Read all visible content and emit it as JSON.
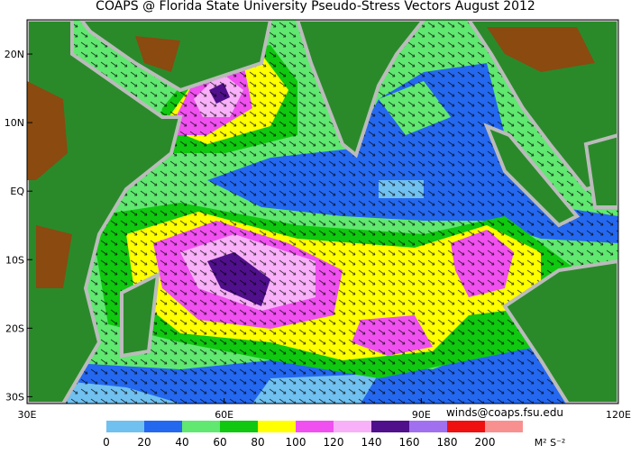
{
  "title": "COAPS @ Florida State University Pseudo-Stress Vectors August 2012",
  "map": {
    "lonlim": [
      30,
      120
    ],
    "latlim": [
      -31,
      25
    ],
    "lon_ticks": [
      {
        "value": 30,
        "label": "30E"
      },
      {
        "value": 60,
        "label": "60E"
      },
      {
        "value": 90,
        "label": "90E"
      },
      {
        "value": 120,
        "label": "120E"
      }
    ],
    "lat_ticks": [
      {
        "value": 20,
        "label": "20N"
      },
      {
        "value": 10,
        "label": "10N"
      },
      {
        "value": 0,
        "label": "EQ"
      },
      {
        "value": -10,
        "label": "10S"
      },
      {
        "value": -20,
        "label": "20S"
      },
      {
        "value": -30,
        "label": "30S"
      }
    ]
  },
  "credit": "winds@coaps.fsu.edu",
  "colorbar": {
    "ticks": [
      0,
      20,
      40,
      60,
      80,
      100,
      120,
      140,
      160,
      180,
      200
    ],
    "colors": [
      "#70c0f0",
      "#2468f0",
      "#60e870",
      "#10c810",
      "#ffff00",
      "#f050f0",
      "#f8b0f8",
      "#50108c",
      "#a070f0",
      "#f01010",
      "#f89090"
    ],
    "unit": "M² S⁻²"
  }
}
